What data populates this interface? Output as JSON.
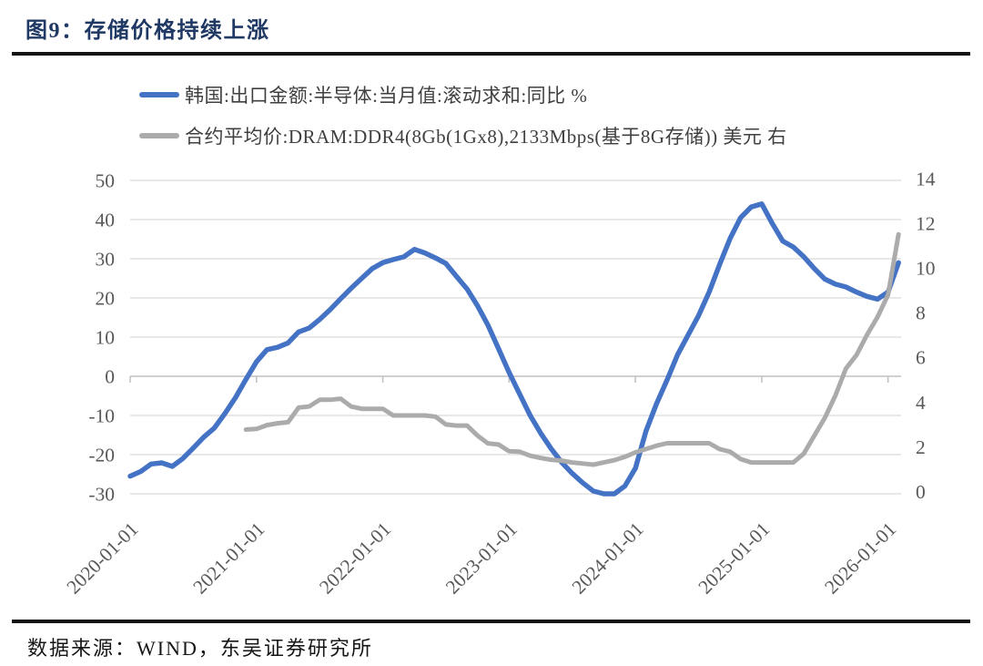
{
  "figure": {
    "title": "图9：存储价格持续上涨",
    "source": "数据来源：WIND，东吴证券研究所"
  },
  "colors": {
    "title_navy": "#1f3864",
    "rule_black": "#141414",
    "axis_label_gray": "#595959",
    "gridline_gray": "#dadada",
    "series_blue": "#4472c4",
    "series_gray": "#ababab"
  },
  "chart_data": {
    "type": "line",
    "title": "图9：存储价格持续上涨",
    "legend_position": "top",
    "grid": "horizontal",
    "x_start": "2020-01",
    "x_end": "2026-02",
    "x_tick_labels": [
      "2020-01-01",
      "2021-01-01",
      "2022-01-01",
      "2023-01-01",
      "2024-01-01",
      "2025-01-01",
      "2026-01-01"
    ],
    "left_axis": {
      "min": -30,
      "max": 50,
      "ticks": [
        50,
        40,
        30,
        20,
        10,
        0,
        -10,
        -20,
        -30
      ]
    },
    "right_axis": {
      "min": 0,
      "max": 14,
      "ticks": [
        14,
        12,
        10,
        8,
        6,
        4,
        2,
        0
      ]
    },
    "series": [
      {
        "name": "韩国:出口金额:半导体:当月值:滚动求和:同比 %",
        "axis": "left",
        "color": "#4472c4",
        "start_month": "2020-01",
        "values": [
          -25.5,
          -24.3,
          -22.4,
          -22.1,
          -23.0,
          -21.0,
          -18.3,
          -15.5,
          -13.2,
          -9.5,
          -5.5,
          -0.8,
          3.7,
          6.8,
          7.4,
          8.5,
          11.3,
          12.3,
          14.5,
          17.0,
          19.8,
          22.5,
          25.0,
          27.5,
          29.0,
          29.8,
          30.5,
          32.4,
          31.5,
          30.2,
          28.8,
          25.5,
          22.3,
          18.0,
          13.0,
          7.0,
          1.0,
          -4.5,
          -10.0,
          -14.5,
          -18.5,
          -22.0,
          -24.8,
          -27.2,
          -29.3,
          -30.0,
          -30.0,
          -28.0,
          -23.5,
          -14.0,
          -7.0,
          -1.0,
          5.5,
          10.5,
          15.5,
          21.5,
          28.5,
          35.2,
          40.5,
          43.2,
          44.0,
          39.0,
          34.5,
          33.0,
          30.5,
          27.5,
          24.8,
          23.5,
          22.8,
          21.5,
          20.4,
          19.7,
          21.5,
          29.0
        ]
      },
      {
        "name": "合约平均价:DRAM:DDR4(8Gb(1Gx8),2133Mbps(基于8G存储)) 美元 右",
        "axis": "right",
        "color": "#ababab",
        "start_month": "2020-12",
        "values": [
          2.77,
          2.8,
          2.97,
          3.05,
          3.1,
          3.75,
          3.8,
          4.1,
          4.1,
          4.15,
          3.8,
          3.7,
          3.7,
          3.7,
          3.4,
          3.4,
          3.4,
          3.4,
          3.35,
          3.0,
          2.95,
          2.95,
          2.5,
          2.15,
          2.1,
          1.8,
          1.78,
          1.6,
          1.5,
          1.42,
          1.38,
          1.3,
          1.25,
          1.2,
          1.3,
          1.4,
          1.55,
          1.75,
          1.9,
          2.05,
          2.16,
          2.16,
          2.16,
          2.16,
          2.16,
          1.9,
          1.78,
          1.45,
          1.3,
          1.3,
          1.3,
          1.3,
          1.3,
          1.7,
          2.5,
          3.3,
          4.3,
          5.5,
          6.1,
          7.0,
          7.8,
          8.8,
          11.5
        ]
      }
    ]
  }
}
